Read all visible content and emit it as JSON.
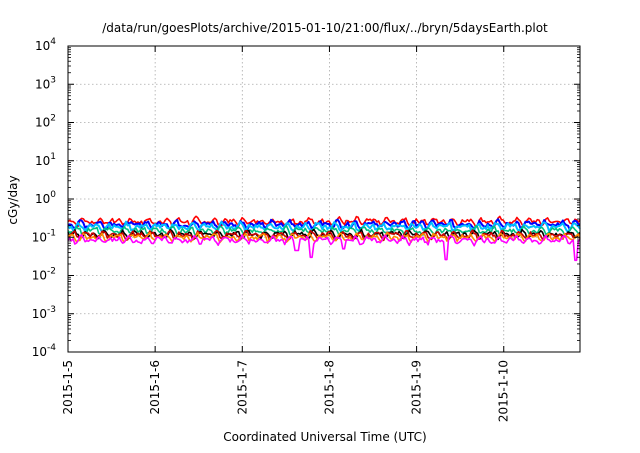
{
  "chart_data": {
    "type": "line",
    "title": "/data/run/goesPlots/archive/2015-01-10/21:00/flux/../bryn/5daysEarth.plot",
    "xlabel": "Coordinated Universal Time (UTC)",
    "ylabel": "cGy/day",
    "y_scale": "log",
    "ylim": [
      0.0001,
      10000
    ],
    "y_ticks": [
      {
        "value": 0.0001,
        "base": "10",
        "exp": "-4"
      },
      {
        "value": 0.001,
        "base": "10",
        "exp": "-3"
      },
      {
        "value": 0.01,
        "base": "10",
        "exp": "-2"
      },
      {
        "value": 0.1,
        "base": "10",
        "exp": "-1"
      },
      {
        "value": 1,
        "base": "10",
        "exp": "0"
      },
      {
        "value": 10,
        "base": "10",
        "exp": "1"
      },
      {
        "value": 100,
        "base": "10",
        "exp": "2"
      },
      {
        "value": 1000,
        "base": "10",
        "exp": "3"
      },
      {
        "value": 10000,
        "base": "10",
        "exp": "4"
      }
    ],
    "xlim": [
      "2015-01-05T00:00",
      "2015-01-10T21:00"
    ],
    "x_tick_labels": [
      "2015-1-5",
      "2015-1-6",
      "2015-1-7",
      "2015-1-8",
      "2015-1-9",
      "2015-1-10"
    ],
    "grid": true,
    "series": [
      {
        "color": "#ff0000",
        "base": 0.26,
        "dips": []
      },
      {
        "color": "#0000ff",
        "base": 0.22,
        "dips": []
      },
      {
        "color": "#00bfff",
        "base": 0.19,
        "dips": []
      },
      {
        "color": "#00c080",
        "base": 0.15,
        "dips": []
      },
      {
        "color": "#000000",
        "base": 0.12,
        "dips": []
      },
      {
        "color": "#cc0000",
        "base": 0.115,
        "dips": []
      },
      {
        "color": "#ff8c00",
        "base": 0.1,
        "dips": []
      },
      {
        "color": "#ff00ff",
        "base": 0.085,
        "dips": [
          {
            "t": "2015-01-07T15:00",
            "v": 0.045
          },
          {
            "t": "2015-01-07T19:00",
            "v": 0.03
          },
          {
            "t": "2015-01-08T04:00",
            "v": 0.05
          },
          {
            "t": "2015-01-09T08:00",
            "v": 0.026
          },
          {
            "t": "2015-01-10T20:00",
            "v": 0.025
          }
        ]
      }
    ]
  }
}
